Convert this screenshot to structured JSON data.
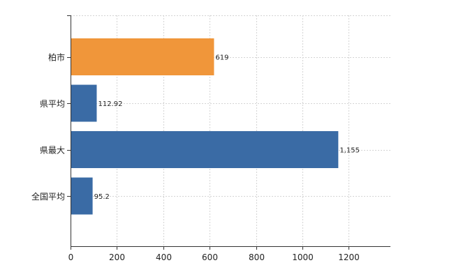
{
  "chart_data": {
    "type": "bar",
    "orientation": "horizontal",
    "categories": [
      "柏市",
      "県平均",
      "県最大",
      "全国平均"
    ],
    "values": [
      619,
      112.92,
      1155,
      95.2
    ],
    "value_labels": [
      "619",
      "112.92",
      "1,155",
      "95.2"
    ],
    "bar_colors": [
      "#f0963a",
      "#3a6ba5",
      "#3a6ba5",
      "#3a6ba5"
    ],
    "xlim": [
      0,
      1380
    ],
    "x_ticks": [
      0,
      200,
      400,
      600,
      800,
      1000,
      1200
    ],
    "x_tick_labels": [
      "0",
      "200",
      "400",
      "600",
      "800",
      "1000",
      "1200"
    ],
    "grid": true,
    "grid_style": "dotted",
    "grid_color": "#d4d4d4",
    "axis_color": "#333333",
    "title": "",
    "xlabel": "",
    "ylabel": ""
  }
}
